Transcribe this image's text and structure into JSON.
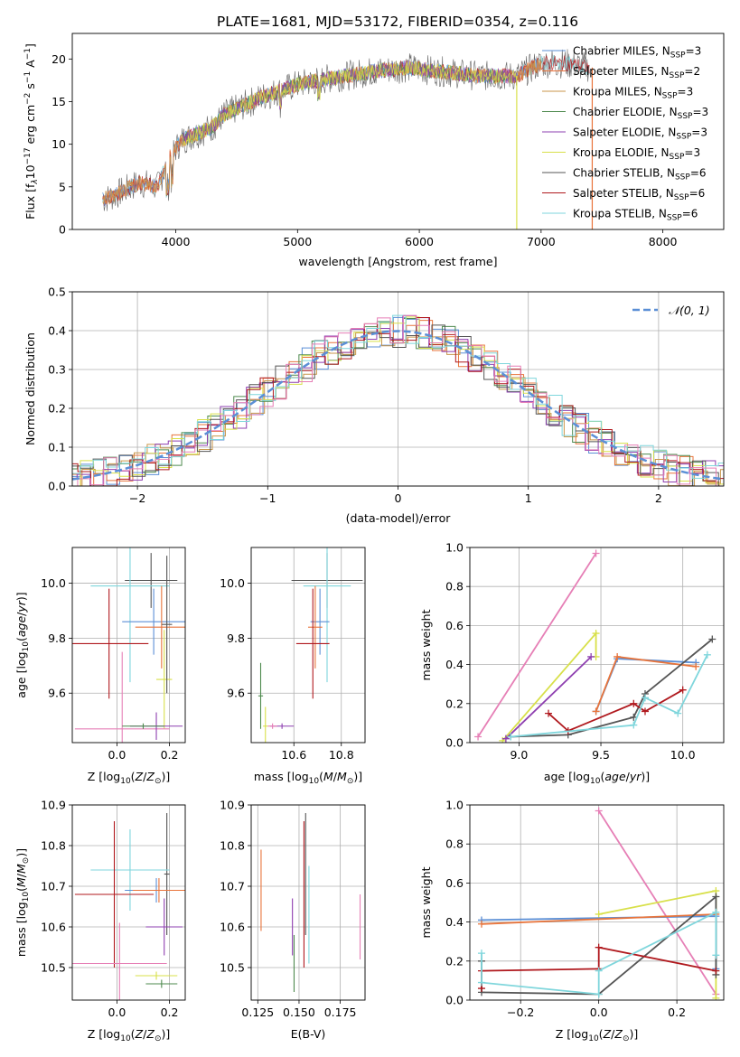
{
  "figure": {
    "title": "PLATE=1681, MJD=53172, FIBERID=0354, z=0.116"
  },
  "colors": {
    "Chabrier MILES": "#5b8fd6",
    "Salpeter MILES": "#e8743b",
    "Kroupa MILES": "#c8964a",
    "Chabrier ELODIE": "#4e8a4e",
    "Salpeter ELODIE": "#8e3fb0",
    "Kroupa ELODIE": "#d8e04a",
    "Chabrier STELIB": "#555555",
    "Salpeter STELIB": "#b0191e",
    "Kroupa STELIB": "#7fd6dc",
    "extra pink": "#e67fb6",
    "extra green": "#9ccb4a",
    "gaussian": "#5b8fd6",
    "grid": "#b0b0b0"
  },
  "chart_data": [
    {
      "id": "spectrum",
      "type": "line",
      "xlabel": "wavelength [Angstrom, rest frame]",
      "ylabel": "Flux [f_λ 10^-17 erg cm^-2 s^-1 A^-1]",
      "ylabel_parts": {
        "prefix": "Flux [f",
        "lambda": "λ",
        "mid": "10",
        "exp1": "−17",
        "mid2": " erg cm",
        "exp2": "−2",
        "mid3": " s",
        "exp3": "−1",
        "end": " A",
        "exp4": "−1",
        "close": "]"
      },
      "xlim": [
        3150,
        8500
      ],
      "ylim": [
        0,
        23
      ],
      "xticks": [
        4000,
        5000,
        6000,
        7000,
        8000
      ],
      "yticks": [
        0,
        5,
        10,
        15,
        20
      ],
      "grid": false,
      "legend_position": "upper right",
      "continuum_x": [
        3400,
        3500,
        3700,
        3850,
        3950,
        4050,
        4300,
        4400,
        4700,
        5000,
        5300,
        5600,
        5900,
        6200,
        6500,
        6800,
        7000,
        7200,
        7400
      ],
      "continuum_y": [
        3.5,
        4.0,
        5.5,
        5.0,
        8.5,
        10.5,
        12.0,
        13.5,
        15.5,
        17.0,
        17.8,
        18.5,
        19.0,
        18.5,
        18.0,
        18.0,
        19.5,
        19.5,
        19.0
      ],
      "dips": [
        {
          "x": 6800,
          "y": 0
        },
        {
          "x": 7420,
          "y": 0
        }
      ],
      "series": [
        {
          "name": "Chabrier MILES",
          "nssp": "3"
        },
        {
          "name": "Salpeter MILES",
          "nssp": "2"
        },
        {
          "name": "Kroupa MILES",
          "nssp": "3"
        },
        {
          "name": "Chabrier ELODIE",
          "nssp": "3"
        },
        {
          "name": "Salpeter ELODIE",
          "nssp": "3"
        },
        {
          "name": "Kroupa ELODIE",
          "nssp": "3"
        },
        {
          "name": "Chabrier STELIB",
          "nssp": "6"
        },
        {
          "name": "Salpeter STELIB",
          "nssp": "6"
        },
        {
          "name": "Kroupa STELIB",
          "nssp": "6"
        }
      ]
    },
    {
      "id": "residuals",
      "type": "line",
      "xlabel": "(data-model)/error",
      "ylabel": "Normed distribution",
      "xlim": [
        -2.5,
        2.5
      ],
      "ylim": [
        0,
        0.5
      ],
      "xticks": [
        -2,
        -1,
        0,
        1,
        2
      ],
      "xtick_labels": [
        "−2",
        "−1",
        "0",
        "1",
        "2"
      ],
      "yticks": [
        0.0,
        0.1,
        0.2,
        0.3,
        0.4,
        0.5
      ],
      "ytick_labels": [
        "0.0",
        "0.1",
        "0.2",
        "0.3",
        "0.4",
        "0.5"
      ],
      "grid": true,
      "legend_label": "𝒩(0, 1)",
      "legend_position": "upper right",
      "bin_width": 0.1,
      "gaussian": {
        "mean": 0,
        "sigma": 1
      }
    },
    {
      "id": "age_vs_Z",
      "type": "scatter",
      "xlabel": "Z [log10(Z/Z⊙)]",
      "ylabel": "age  [log10(age/yr)]",
      "xlim": [
        -0.17,
        0.26
      ],
      "ylim": [
        9.42,
        10.13
      ],
      "xticks": [
        0.0,
        0.2
      ],
      "xtick_labels": [
        "0.0",
        "0.2"
      ],
      "yticks": [
        9.6,
        9.8,
        10.0
      ],
      "ytick_labels": [
        "9.6",
        "9.8",
        "10.0"
      ],
      "grid": true,
      "points": [
        {
          "c": "Chabrier STELIB",
          "x": 0.13,
          "xe": 0.1,
          "y": 10.01,
          "ye": 0.1
        },
        {
          "c": "Kroupa STELIB",
          "x": 0.05,
          "xe": 0.15,
          "y": 9.99,
          "ye": 0.35
        },
        {
          "c": "Chabrier MILES",
          "x": 0.14,
          "xe": 0.12,
          "y": 9.86,
          "ye": 0.12
        },
        {
          "c": "Salpeter MILES",
          "x": 0.17,
          "xe": 0.1,
          "y": 9.84,
          "ye": 0.15
        },
        {
          "c": "Salpeter STELIB",
          "x": -0.03,
          "xe": 0.15,
          "y": 9.78,
          "ye": 0.2
        },
        {
          "c": "Kroupa ELODIE",
          "x": 0.18,
          "xe": 0.03,
          "y": 9.65,
          "ye": 0.18
        },
        {
          "c": "extra pink",
          "x": 0.02,
          "xe": 0.18,
          "y": 9.47,
          "ye": 0.28
        },
        {
          "c": "Salpeter ELODIE",
          "x": 0.15,
          "xe": 0.1,
          "y": 9.48,
          "ye": 0.05
        },
        {
          "c": "Chabrier ELODIE",
          "x": 0.1,
          "xe": 0.08,
          "y": 9.48,
          "ye": 0.01
        },
        {
          "c": "Chabrier STELIB",
          "x": 0.19,
          "xe": 0.02,
          "y": 9.85,
          "ye": 0.25
        }
      ]
    },
    {
      "id": "age_vs_mass",
      "type": "scatter",
      "xlabel": "mass [log10(M/M⊙)]",
      "ylabel": "",
      "xlim": [
        10.42,
        10.9
      ],
      "ylim": [
        9.42,
        10.13
      ],
      "xticks": [
        10.6,
        10.8
      ],
      "xtick_labels": [
        "10.6",
        "10.8"
      ],
      "yticks": [
        9.6,
        9.8,
        10.0
      ],
      "ytick_labels": [
        "9.6",
        "9.8",
        "10.0"
      ],
      "grid": true,
      "points": [
        {
          "c": "Chabrier STELIB",
          "x": 10.74,
          "xe": 0.15,
          "y": 10.01,
          "ye": 0.1
        },
        {
          "c": "Kroupa STELIB",
          "x": 10.74,
          "xe": 0.1,
          "y": 9.99,
          "ye": 0.35
        },
        {
          "c": "Chabrier MILES",
          "x": 10.71,
          "xe": 0.04,
          "y": 9.86,
          "ye": 0.12
        },
        {
          "c": "Salpeter MILES",
          "x": 10.69,
          "xe": 0.03,
          "y": 9.84,
          "ye": 0.15
        },
        {
          "c": "Salpeter STELIB",
          "x": 10.68,
          "xe": 0.07,
          "y": 9.78,
          "ye": 0.2
        },
        {
          "c": "Kroupa ELODIE",
          "x": 10.48,
          "xe": 0.01,
          "y": 9.48,
          "ye": 0.07
        },
        {
          "c": "Chabrier ELODIE",
          "x": 10.46,
          "xe": 0.01,
          "y": 9.59,
          "ye": 0.12
        },
        {
          "c": "Salpeter ELODIE",
          "x": 10.55,
          "xe": 0.05,
          "y": 9.48,
          "ye": 0.01
        },
        {
          "c": "extra pink",
          "x": 10.51,
          "xe": 0.02,
          "y": 9.48,
          "ye": 0.01
        }
      ]
    },
    {
      "id": "mass_weight_vs_age",
      "type": "line",
      "xlabel": "age  [log10(age/yr)]",
      "ylabel": "mass weight",
      "xlim": [
        8.7,
        10.25
      ],
      "ylim": [
        0,
        1.0
      ],
      "xticks": [
        9.0,
        9.5,
        10.0
      ],
      "xtick_labels": [
        "9.0",
        "9.5",
        "10.0"
      ],
      "yticks": [
        0.0,
        0.2,
        0.4,
        0.6,
        0.8,
        1.0
      ],
      "ytick_labels": [
        "0.0",
        "0.2",
        "0.4",
        "0.6",
        "0.8",
        "1.0"
      ],
      "grid": true,
      "series": [
        {
          "c": "extra pink",
          "x": [
            8.75,
            9.47
          ],
          "y": [
            0.03,
            0.97
          ]
        },
        {
          "c": "Kroupa ELODIE",
          "x": [
            8.9,
            9.47,
            9.47
          ],
          "y": [
            0.01,
            0.56,
            0.44
          ]
        },
        {
          "c": "Salpeter ELODIE",
          "x": [
            8.92,
            9.44
          ],
          "y": [
            0.02,
            0.44
          ]
        },
        {
          "c": "Chabrier MILES",
          "x": [
            9.47,
            9.6,
            10.08
          ],
          "y": [
            0.16,
            0.43,
            0.41
          ]
        },
        {
          "c": "Salpeter MILES",
          "x": [
            9.47,
            9.6,
            10.08
          ],
          "y": [
            0.16,
            0.44,
            0.39
          ]
        },
        {
          "c": "Chabrier STELIB",
          "x": [
            8.95,
            9.3,
            9.7,
            9.77,
            10.18
          ],
          "y": [
            0.03,
            0.04,
            0.13,
            0.25,
            0.53
          ]
        },
        {
          "c": "Salpeter STELIB",
          "x": [
            9.18,
            9.3,
            9.7,
            9.77,
            10.0
          ],
          "y": [
            0.15,
            0.06,
            0.2,
            0.16,
            0.27
          ]
        },
        {
          "c": "Kroupa STELIB",
          "x": [
            8.95,
            9.7,
            9.77,
            9.97,
            10.15
          ],
          "y": [
            0.03,
            0.09,
            0.23,
            0.15,
            0.45
          ]
        }
      ]
    },
    {
      "id": "mass_vs_Z",
      "type": "scatter",
      "xlabel": "Z [log10(Z/Z⊙)]",
      "ylabel": "mass [log10(M/M⊙)]",
      "xlim": [
        -0.17,
        0.26
      ],
      "ylim": [
        10.42,
        10.9
      ],
      "xticks": [
        0.0,
        0.2
      ],
      "xtick_labels": [
        "0.0",
        "0.2"
      ],
      "yticks": [
        10.5,
        10.6,
        10.7,
        10.8,
        10.9
      ],
      "ytick_labels": [
        "10.5",
        "10.6",
        "10.7",
        "10.8",
        "10.9"
      ],
      "grid": true,
      "points": [
        {
          "c": "Chabrier STELIB",
          "x": 0.19,
          "xe": 0.01,
          "y": 10.73,
          "ye": 0.15
        },
        {
          "c": "Kroupa STELIB",
          "x": 0.05,
          "xe": 0.15,
          "y": 10.74,
          "ye": 0.1
        },
        {
          "c": "Chabrier MILES",
          "x": 0.15,
          "xe": 0.12,
          "y": 10.69,
          "ye": 0.03
        },
        {
          "c": "Salpeter MILES",
          "x": 0.16,
          "xe": 0.1,
          "y": 10.69,
          "ye": 0.03
        },
        {
          "c": "Salpeter STELIB",
          "x": -0.01,
          "xe": 0.15,
          "y": 10.68,
          "ye": 0.18
        },
        {
          "c": "extra pink",
          "x": 0.01,
          "xe": 0.18,
          "y": 10.51,
          "ye": 0.1
        },
        {
          "c": "Salpeter ELODIE",
          "x": 0.18,
          "xe": 0.07,
          "y": 10.6,
          "ye": 0.07
        },
        {
          "c": "Kroupa ELODIE",
          "x": 0.15,
          "xe": 0.08,
          "y": 10.48,
          "ye": 0.01
        },
        {
          "c": "Chabrier ELODIE",
          "x": 0.17,
          "xe": 0.06,
          "y": 10.46,
          "ye": 0.01
        }
      ]
    },
    {
      "id": "mass_vs_ebv",
      "type": "scatter",
      "xlabel": "E(B-V)",
      "ylabel": "",
      "xlim": [
        0.121,
        0.19
      ],
      "ylim": [
        10.42,
        10.9
      ],
      "xticks": [
        0.125,
        0.15,
        0.175
      ],
      "xtick_labels": [
        "0.125",
        "0.150",
        "0.175"
      ],
      "yticks": [
        10.5,
        10.6,
        10.7,
        10.8,
        10.9
      ],
      "ytick_labels": [
        "10.5",
        "10.6",
        "10.7",
        "10.8",
        "10.9"
      ],
      "grid": true,
      "points": [
        {
          "c": "Salpeter MILES",
          "x": 0.127,
          "xe": 0,
          "y": 10.69,
          "ye": 0.1
        },
        {
          "c": "Salpeter ELODIE",
          "x": 0.146,
          "xe": 0,
          "y": 10.6,
          "ye": 0.07
        },
        {
          "c": "Chabrier ELODIE",
          "x": 0.147,
          "xe": 0,
          "y": 10.51,
          "ye": 0.07
        },
        {
          "c": "Salpeter STELIB",
          "x": 0.153,
          "xe": 0,
          "y": 10.68,
          "ye": 0.18
        },
        {
          "c": "Chabrier STELIB",
          "x": 0.154,
          "xe": 0,
          "y": 10.73,
          "ye": 0.15
        },
        {
          "c": "Kroupa STELIB",
          "x": 0.156,
          "xe": 0,
          "y": 10.63,
          "ye": 0.12
        },
        {
          "c": "extra pink",
          "x": 0.187,
          "xe": 0,
          "y": 10.6,
          "ye": 0.08
        }
      ]
    },
    {
      "id": "mass_weight_vs_Z",
      "type": "line",
      "xlabel": "Z [log10(Z/Z⊙)]",
      "ylabel": "mass weight",
      "xlim": [
        -0.33,
        0.32
      ],
      "ylim": [
        0,
        1.0
      ],
      "xticks": [
        -0.2,
        0.0,
        0.2
      ],
      "xtick_labels": [
        "−0.2",
        "0.0",
        "0.2"
      ],
      "yticks": [
        0.0,
        0.2,
        0.4,
        0.6,
        0.8,
        1.0
      ],
      "ytick_labels": [
        "0.0",
        "0.2",
        "0.4",
        "0.6",
        "0.8",
        "1.0"
      ],
      "grid": true,
      "series": [
        {
          "c": "extra pink",
          "x": [
            0.0,
            0.3
          ],
          "y": [
            0.97,
            0.03
          ]
        },
        {
          "c": "Kroupa ELODIE",
          "x": [
            0.0,
            0.3,
            0.3
          ],
          "y": [
            0.44,
            0.56,
            0.01
          ]
        },
        {
          "c": "Chabrier MILES",
          "x": [
            -0.3,
            0.3,
            0.3
          ],
          "y": [
            0.41,
            0.43,
            0.16
          ]
        },
        {
          "c": "Salpeter MILES",
          "x": [
            -0.3,
            0.3
          ],
          "y": [
            0.39,
            0.44
          ]
        },
        {
          "c": "Chabrier STELIB",
          "x": [
            -0.3,
            -0.3,
            0.0,
            0.3,
            0.3
          ],
          "y": [
            0.2,
            0.04,
            0.03,
            0.53,
            0.13
          ]
        },
        {
          "c": "Salpeter STELIB",
          "x": [
            -0.3,
            -0.3,
            0.0,
            0.0,
            0.3
          ],
          "y": [
            0.06,
            0.15,
            0.16,
            0.27,
            0.15
          ]
        },
        {
          "c": "Kroupa STELIB",
          "x": [
            -0.3,
            -0.3,
            0.0,
            0.0,
            0.3,
            0.3
          ],
          "y": [
            0.24,
            0.09,
            0.03,
            0.15,
            0.45,
            0.23
          ]
        }
      ]
    }
  ]
}
